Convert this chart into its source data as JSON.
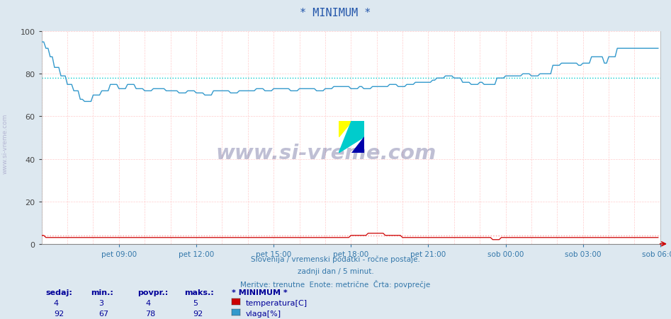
{
  "title": "* MINIMUM *",
  "title_color": "#2255aa",
  "bg_color": "#dde8f0",
  "plot_bg_color": "#ffffff",
  "subtitle_lines": [
    "Slovenija / vremenski podatki - ročne postaje.",
    "zadnji dan / 5 minut.",
    "Meritve: trenutne  Enote: metrične  Črta: povprečje"
  ],
  "subtitle_color": "#3377aa",
  "temp_color": "#cc0000",
  "humidity_color": "#3399cc",
  "temp_avg": 4,
  "humidity_avg": 78,
  "xticklabels": [
    "pet 09:00",
    "pet 12:00",
    "pet 15:00",
    "pet 18:00",
    "pet 21:00",
    "sob 00:00",
    "sob 03:00",
    "sob 06:00"
  ],
  "yticks": [
    0,
    20,
    40,
    60,
    80,
    100
  ],
  "ylim": [
    0,
    100
  ],
  "n_points": 288,
  "table_color": "#000099",
  "legend_labels": [
    "temperatura[C]",
    "vlaga[%]"
  ],
  "legend_colors": [
    "#cc0000",
    "#3399cc"
  ],
  "table_headers": [
    "sedaj:",
    "min.:",
    "povpr.:",
    "maks.:"
  ],
  "table_row1": [
    4,
    3,
    4,
    5
  ],
  "table_row2": [
    92,
    67,
    78,
    92
  ],
  "xtick_positions": [
    36,
    72,
    108,
    144,
    180,
    216,
    252,
    288
  ],
  "grid_color": "#ffcccc",
  "avg_h_color": "#00cccc",
  "avg_t_color": "#ff9999",
  "side_label": "www.si-vreme.com"
}
